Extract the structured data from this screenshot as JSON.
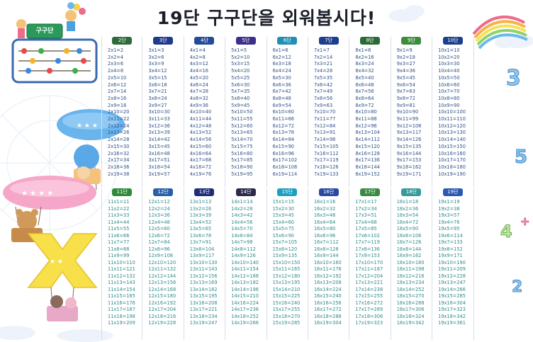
{
  "title": "19단 구구단을 외워봅시다!",
  "sign_text": "구구단",
  "tables": [
    {
      "label": "2단",
      "color": "#2e6a3c",
      "lines": [
        "2x1=2",
        "2x2=4",
        "2x3=6",
        "2x4=8",
        "2x5=10",
        "2x6=12",
        "2x7=14",
        "2x8=16",
        "2x9=18",
        "2x10=20",
        "2x11=22",
        "2x12=24",
        "2x13=26",
        "2x14=28",
        "2x15=30",
        "2x16=32",
        "2x17=34",
        "2x18=36",
        "2x19=38"
      ]
    },
    {
      "label": "3단",
      "color": "#1e3a8c",
      "lines": [
        "3x1=3",
        "3x2=6",
        "3x3=9",
        "3x4=12",
        "3x5=15",
        "3x6=18",
        "3x7=21",
        "3x8=24",
        "3x9=27",
        "3x10=30",
        "3x11=33",
        "3x12=36",
        "3x13=39",
        "3x14=42",
        "3x15=45",
        "3x16=48",
        "3x17=51",
        "3x18=54",
        "3x19=57"
      ]
    },
    {
      "label": "4단",
      "color": "#244a9a",
      "lines": [
        "4x1=4",
        "4x2=8",
        "4x3=12",
        "4x4=16",
        "4x5=20",
        "4x6=24",
        "4x7=28",
        "4x8=32",
        "4x9=36",
        "4x10=40",
        "4x11=44",
        "4x12=48",
        "4x13=52",
        "4x14=56",
        "4x15=60",
        "4x16=64",
        "4x17=68",
        "4x18=72",
        "4x19=76"
      ]
    },
    {
      "label": "5단",
      "color": "#3a2f8a",
      "lines": [
        "5x1=5",
        "5x2=10",
        "5x3=15",
        "5x4=20",
        "5x5=25",
        "5x6=30",
        "5x7=35",
        "5x8=40",
        "5x9=45",
        "5x10=50",
        "5x11=55",
        "5x12=60",
        "5x13=65",
        "5x14=70",
        "5x15=75",
        "5x16=80",
        "5x17=85",
        "5x18=90",
        "5x19=95"
      ]
    },
    {
      "label": "6단",
      "color": "#1f8fb5",
      "lines": [
        "6x1=6",
        "6x2=12",
        "6x3=18",
        "6x4=24",
        "6x5=30",
        "6x6=36",
        "6x7=42",
        "6x8=48",
        "6x9=54",
        "6x10=60",
        "6x11=66",
        "6x12=72",
        "6x13=78",
        "6x14=84",
        "6x15=90",
        "6x16=96",
        "6x17=102",
        "6x18=108",
        "6x19=114"
      ]
    },
    {
      "label": "7단",
      "color": "#1b3e8e",
      "lines": [
        "7x1=7",
        "7x2=14",
        "7x3=21",
        "7x4=28",
        "7x5=35",
        "7x6=42",
        "7x7=49",
        "7x8=56",
        "7x9=63",
        "7x10=70",
        "7x11=77",
        "7x12=84",
        "7x13=91",
        "7x14=98",
        "7x15=105",
        "7x16=112",
        "7x17=119",
        "7x18=126",
        "7x19=133"
      ]
    },
    {
      "label": "8단",
      "color": "#2a6a36",
      "lines": [
        "8x1=8",
        "8x2=16",
        "8x3=24",
        "8x4=32",
        "8x5=40",
        "8x6=48",
        "8x7=56",
        "8x8=64",
        "8x9=72",
        "8x10=80",
        "8x11=88",
        "8x12=96",
        "8x13=104",
        "8x14=112",
        "8x15=120",
        "8x16=128",
        "8x17=136",
        "8x18=144",
        "8x19=152"
      ]
    },
    {
      "label": "9단",
      "color": "#3c8c3c",
      "lines": [
        "9x1=9",
        "9x2=18",
        "9x3=27",
        "9x4=36",
        "9x5=45",
        "9x6=54",
        "9x7=63",
        "9x8=72",
        "9x9=81",
        "9x10=90",
        "9x11=99",
        "9x12=108",
        "9x13=117",
        "9x14=126",
        "9x15=135",
        "9x16=144",
        "9x17=153",
        "9x18=162",
        "9x19=171"
      ]
    },
    {
      "label": "10단",
      "color": "#1a3f8c",
      "lines": [
        "10x1=10",
        "10x2=20",
        "10x3=30",
        "10x4=40",
        "10x5=50",
        "10x6=60",
        "10x7=70",
        "10x8=80",
        "10x9=90",
        "10x10=100",
        "10x11=110",
        "10x12=120",
        "10x13=130",
        "10x14=140",
        "10x15=150",
        "10x16=160",
        "10x17=170",
        "10x18=180",
        "10x19=190"
      ]
    },
    {
      "label": "11단",
      "color": "#2f8a3c",
      "lines": [
        "11x1=11",
        "11x2=22",
        "11x3=33",
        "11x4=44",
        "11x5=55",
        "11x6=66",
        "11x7=77",
        "11x8=88",
        "11x9=99",
        "11x10=110",
        "11x11=121",
        "11x12=132",
        "11x13=143",
        "11x14=154",
        "11x15=165",
        "11x16=176",
        "11x17=187",
        "11x18=198",
        "11x19=209"
      ]
    },
    {
      "label": "12단",
      "color": "#2a5ea8",
      "lines": [
        "12x1=12",
        "12x2=24",
        "12x3=36",
        "12x4=48",
        "12x5=60",
        "12x6=72",
        "12x7=84",
        "12x8=96",
        "12x9=108",
        "12x10=120",
        "12x11=132",
        "12x12=144",
        "12x13=156",
        "12x14=168",
        "12x15=180",
        "12x16=192",
        "12x17=204",
        "12x18=216",
        "12x19=228"
      ]
    },
    {
      "label": "13단",
      "color": "#1d2f7a",
      "lines": [
        "13x1=13",
        "13x2=26",
        "13x3=39",
        "13x4=52",
        "13x5=65",
        "13x6=78",
        "13x7=91",
        "13x8=104",
        "13x9=117",
        "13x10=130",
        "13x11=143",
        "13x12=156",
        "13x13=169",
        "13x14=182",
        "13x15=195",
        "13x16=208",
        "13x17=221",
        "13x18=234",
        "13x19=247"
      ]
    },
    {
      "label": "14단",
      "color": "#2c2c4a",
      "lines": [
        "14x1=14",
        "14x2=28",
        "14x3=42",
        "14x4=56",
        "14x5=70",
        "14x6=84",
        "14x7=98",
        "14x8=112",
        "14x9=126",
        "14x10=140",
        "14x11=154",
        "14x12=168",
        "14x13=182",
        "14x14=196",
        "14x15=210",
        "14x16=224",
        "14x17=238",
        "14x18=252",
        "14x19=266"
      ]
    },
    {
      "label": "15단",
      "color": "#1f9ec4",
      "lines": [
        "15x1=15",
        "15x2=30",
        "15x3=45",
        "15x4=60",
        "15x5=75",
        "15x6=90",
        "15x7=105",
        "15x8=120",
        "15x9=135",
        "15x10=150",
        "15x11=165",
        "15x12=180",
        "15x13=195",
        "15x14=210",
        "15x15=225",
        "15x16=240",
        "15x17=255",
        "15x18=270",
        "15x19=285"
      ]
    },
    {
      "label": "16단",
      "color": "#2a4aa0",
      "lines": [
        "16x1=16",
        "16x2=32",
        "16x3=48",
        "16x4=64",
        "16x5=80",
        "16x6=96",
        "16x7=112",
        "16x8=128",
        "16x9=144",
        "16x10=160",
        "16x11=176",
        "16x12=192",
        "16x13=208",
        "16x14=224",
        "16x15=240",
        "16x16=256",
        "16x17=272",
        "16x18=288",
        "16x19=304"
      ]
    },
    {
      "label": "17단",
      "color": "#3a8a44",
      "lines": [
        "17x1=17",
        "17x2=34",
        "17x3=51",
        "17x4=68",
        "17x5=85",
        "17x6=102",
        "17x7=119",
        "17x8=136",
        "17x9=153",
        "17x10=170",
        "17x11=187",
        "17x12=204",
        "17x13=221",
        "17x14=238",
        "17x15=255",
        "17x16=272",
        "17x17=289",
        "17x18=306",
        "17x19=323"
      ]
    },
    {
      "label": "18단",
      "color": "#3a9a9a",
      "lines": [
        "18x1=18",
        "18x2=36",
        "18x3=54",
        "18x4=72",
        "18x5=90",
        "18x6=108",
        "18x7=126",
        "18x8=144",
        "18x9=162",
        "18x10=180",
        "18x11=198",
        "18x12=216",
        "18x13=234",
        "18x14=252",
        "18x15=270",
        "18x16=288",
        "18x17=306",
        "18x18=324",
        "18x19=342"
      ]
    },
    {
      "label": "19단",
      "color": "#2a5ab0",
      "lines": [
        "19x1=19",
        "19x2=38",
        "19x3=57",
        "19x4=76",
        "19x5=95",
        "19x6=114",
        "19x7=133",
        "19x8=152",
        "19x9=171",
        "19x10=190",
        "19x11=209",
        "19x12=228",
        "19x13=247",
        "19x14=266",
        "19x15=285",
        "19x16=304",
        "19x17=323",
        "19x18=342",
        "19x19=361"
      ]
    }
  ],
  "colors": {
    "line_text": "#2e4f86",
    "row2_text": "#2f8a8a"
  }
}
